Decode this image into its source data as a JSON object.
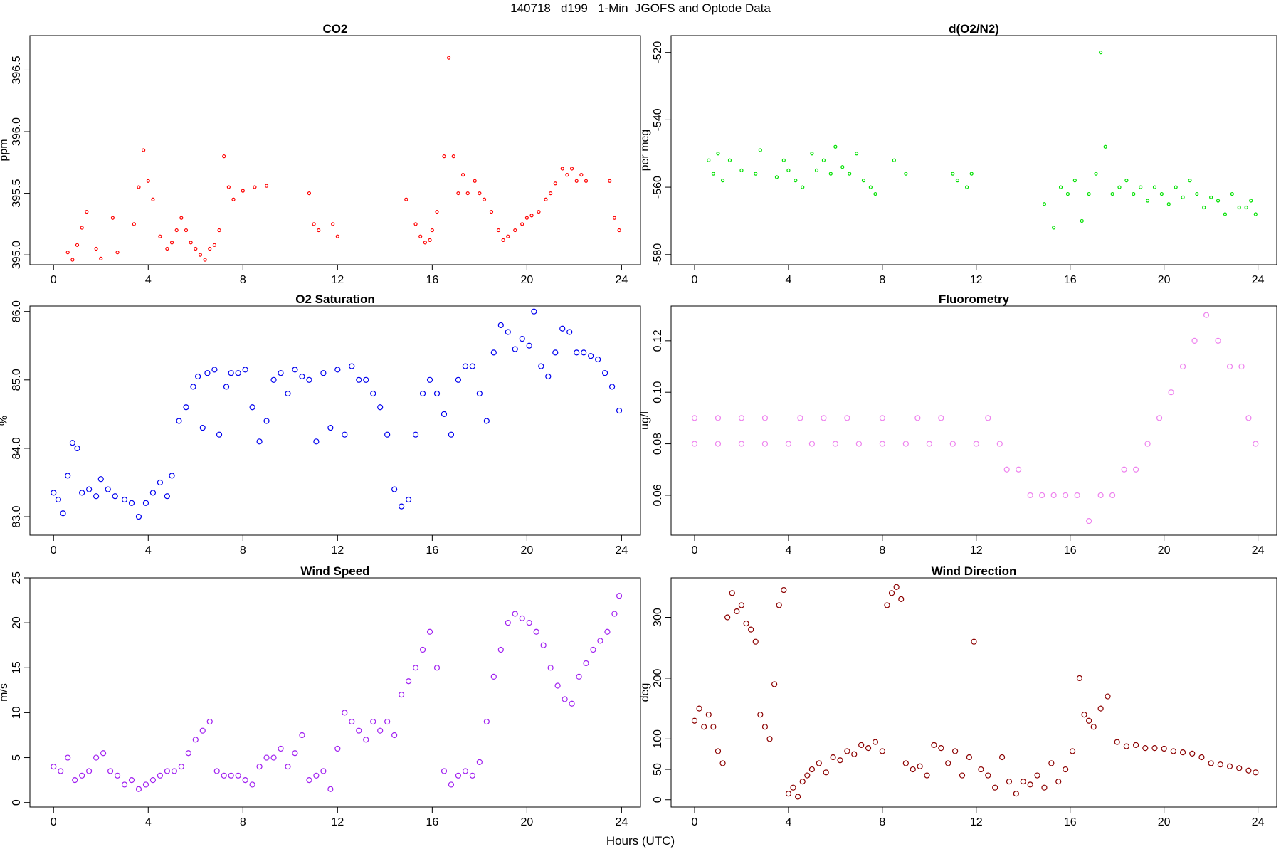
{
  "figure": {
    "title": "140718   d199   1-Min  JGOFS and Optode Data",
    "xlabel": "Hours (UTC)"
  },
  "chart_data": [
    {
      "id": "co2",
      "type": "scatter",
      "title": "CO2",
      "ylabel": "ppm",
      "color": "#ff0000",
      "xlim": [
        -1,
        24.8
      ],
      "ylim": [
        394.92,
        396.78
      ],
      "xticks": [
        0,
        4,
        8,
        12,
        16,
        20,
        24
      ],
      "yticks": [
        395.0,
        395.5,
        396.0,
        396.5
      ],
      "ytick_labels": [
        "395.0",
        "395.5",
        "396.0",
        "396.5"
      ],
      "x": [
        0.6,
        0.8,
        1.0,
        1.2,
        1.4,
        1.8,
        2.0,
        2.5,
        2.7,
        3.4,
        3.6,
        3.8,
        4.0,
        4.2,
        4.5,
        4.8,
        5.0,
        5.2,
        5.4,
        5.6,
        5.8,
        6.0,
        6.2,
        6.4,
        6.6,
        6.8,
        7.0,
        7.2,
        7.4,
        7.6,
        8.0,
        8.5,
        9.0,
        10.8,
        11.0,
        11.2,
        11.8,
        12.0,
        14.9,
        15.3,
        15.5,
        15.7,
        15.9,
        16.0,
        16.2,
        16.5,
        16.7,
        16.9,
        17.1,
        17.3,
        17.5,
        17.8,
        18.0,
        18.2,
        18.5,
        18.8,
        19.0,
        19.2,
        19.5,
        19.8,
        20.0,
        20.2,
        20.5,
        20.8,
        21.0,
        21.2,
        21.5,
        21.7,
        21.9,
        22.1,
        22.3,
        22.5,
        23.5,
        23.7,
        23.9
      ],
      "y": [
        395.02,
        394.96,
        395.08,
        395.22,
        395.35,
        395.05,
        394.97,
        395.3,
        395.02,
        395.25,
        395.55,
        395.85,
        395.6,
        395.45,
        395.15,
        395.05,
        395.1,
        395.2,
        395.3,
        395.2,
        395.1,
        395.05,
        395.0,
        394.96,
        395.05,
        395.08,
        395.2,
        395.8,
        395.55,
        395.45,
        395.52,
        395.55,
        395.56,
        395.5,
        395.25,
        395.2,
        395.25,
        395.15,
        395.45,
        395.25,
        395.15,
        395.1,
        395.12,
        395.2,
        395.35,
        395.8,
        396.6,
        395.8,
        395.5,
        395.65,
        395.5,
        395.6,
        395.5,
        395.45,
        395.35,
        395.2,
        395.12,
        395.15,
        395.2,
        395.25,
        395.3,
        395.32,
        395.35,
        395.45,
        395.5,
        395.58,
        395.7,
        395.65,
        395.7,
        395.6,
        395.65,
        395.6,
        395.6,
        395.3,
        395.2
      ]
    },
    {
      "id": "do2n2",
      "type": "scatter",
      "title": "d(O2/N2)",
      "ylabel": "per meg",
      "color": "#00e000",
      "xlim": [
        -1,
        24.8
      ],
      "ylim": [
        -583,
        -515
      ],
      "xticks": [
        0,
        4,
        8,
        12,
        16,
        20,
        24
      ],
      "yticks": [
        -520,
        -540,
        -560,
        -580
      ],
      "ytick_labels": [
        "-520",
        "-540",
        "-560",
        "-580"
      ],
      "x": [
        0.6,
        0.8,
        1.0,
        1.2,
        1.5,
        2.0,
        2.6,
        2.8,
        3.5,
        3.8,
        4.0,
        4.3,
        4.6,
        5.0,
        5.2,
        5.5,
        5.8,
        6.0,
        6.3,
        6.6,
        6.9,
        7.2,
        7.5,
        7.7,
        8.5,
        9.0,
        11.0,
        11.2,
        11.6,
        11.8,
        14.9,
        15.3,
        15.6,
        15.9,
        16.2,
        16.5,
        16.8,
        17.1,
        17.3,
        17.5,
        17.8,
        18.1,
        18.4,
        18.7,
        19.0,
        19.3,
        19.6,
        19.9,
        20.2,
        20.5,
        20.8,
        21.1,
        21.4,
        21.7,
        22.0,
        22.3,
        22.6,
        22.9,
        23.2,
        23.5,
        23.7,
        23.9
      ],
      "y": [
        -552,
        -556,
        -550,
        -558,
        -552,
        -555,
        -556,
        -549,
        -557,
        -552,
        -555,
        -558,
        -560,
        -550,
        -555,
        -552,
        -556,
        -548,
        -554,
        -556,
        -550,
        -558,
        -560,
        -562,
        -552,
        -556,
        -556,
        -558,
        -560,
        -556,
        -565,
        -572,
        -560,
        -562,
        -558,
        -570,
        -562,
        -556,
        -520,
        -548,
        -562,
        -560,
        -558,
        -562,
        -560,
        -564,
        -560,
        -562,
        -565,
        -560,
        -563,
        -558,
        -562,
        -566,
        -563,
        -564,
        -568,
        -562,
        -566,
        -566,
        -564,
        -568
      ]
    },
    {
      "id": "o2sat",
      "type": "scatter",
      "title": "O2 Saturation",
      "ylabel": "%",
      "color": "#0000ee",
      "xlim": [
        -1,
        24.8
      ],
      "ylim": [
        82.73,
        86.08
      ],
      "xticks": [
        0,
        4,
        8,
        12,
        16,
        20,
        24
      ],
      "yticks": [
        83.0,
        84.0,
        85.0,
        86.0
      ],
      "ytick_labels": [
        "83.0",
        "84.0",
        "85.0",
        "86.0"
      ],
      "x": [
        0.0,
        0.2,
        0.4,
        0.6,
        0.8,
        1.0,
        1.2,
        1.5,
        1.8,
        2.0,
        2.3,
        2.6,
        3.0,
        3.3,
        3.6,
        3.9,
        4.2,
        4.5,
        4.8,
        5.0,
        5.3,
        5.6,
        5.9,
        6.1,
        6.3,
        6.5,
        6.8,
        7.0,
        7.3,
        7.5,
        7.8,
        8.1,
        8.4,
        8.7,
        9.0,
        9.3,
        9.6,
        9.9,
        10.2,
        10.5,
        10.8,
        11.1,
        11.4,
        11.7,
        12.0,
        12.3,
        12.6,
        12.9,
        13.2,
        13.5,
        13.8,
        14.1,
        14.4,
        14.7,
        15.0,
        15.3,
        15.6,
        15.9,
        16.2,
        16.5,
        16.8,
        17.1,
        17.4,
        17.7,
        18.0,
        18.3,
        18.6,
        18.9,
        19.2,
        19.5,
        19.8,
        20.1,
        20.3,
        20.6,
        20.9,
        21.2,
        21.5,
        21.8,
        22.1,
        22.4,
        22.7,
        23.0,
        23.3,
        23.6,
        23.9
      ],
      "y": [
        83.35,
        83.25,
        83.05,
        83.6,
        84.08,
        84.0,
        83.35,
        83.4,
        83.3,
        83.55,
        83.4,
        83.3,
        83.25,
        83.2,
        83.0,
        83.2,
        83.35,
        83.5,
        83.3,
        83.6,
        84.4,
        84.6,
        84.9,
        85.05,
        84.3,
        85.1,
        85.15,
        84.2,
        84.9,
        85.1,
        85.1,
        85.15,
        84.6,
        84.1,
        84.4,
        85.0,
        85.1,
        84.8,
        85.15,
        85.05,
        85.0,
        84.1,
        85.1,
        84.3,
        85.15,
        84.2,
        85.2,
        85.0,
        85.0,
        84.8,
        84.6,
        84.2,
        83.4,
        83.15,
        83.25,
        84.2,
        84.8,
        85.0,
        84.8,
        84.5,
        84.2,
        85.0,
        85.2,
        85.2,
        84.8,
        84.4,
        85.4,
        85.8,
        85.7,
        85.45,
        85.6,
        85.5,
        86.0,
        85.2,
        85.05,
        85.4,
        85.75,
        85.7,
        85.4,
        85.4,
        85.35,
        85.3,
        85.1,
        84.9,
        84.55
      ]
    },
    {
      "id": "fluor",
      "type": "scatter",
      "title": "Fluorometry",
      "ylabel": "ug/l",
      "color": "#ee82ee",
      "xlim": [
        -1,
        24.8
      ],
      "ylim": [
        0.0445,
        0.1335
      ],
      "xticks": [
        0,
        4,
        8,
        12,
        16,
        20,
        24
      ],
      "yticks": [
        0.06,
        0.08,
        0.1,
        0.12
      ],
      "ytick_labels": [
        "0.06",
        "0.08",
        "0.10",
        "0.12"
      ],
      "x": [
        0.0,
        1.0,
        2.0,
        3.0,
        4.0,
        5.0,
        6.0,
        7.0,
        8.0,
        9.0,
        10.0,
        11.0,
        12.0,
        13.0,
        0.0,
        1.0,
        2.0,
        3.0,
        4.5,
        5.5,
        6.5,
        8.0,
        9.5,
        10.5,
        12.5,
        13.3,
        13.8,
        14.3,
        14.8,
        15.3,
        15.8,
        16.3,
        16.8,
        17.3,
        17.8,
        18.3,
        18.8,
        19.3,
        19.8,
        20.3,
        20.8,
        21.3,
        21.8,
        22.3,
        22.8,
        23.3,
        23.6,
        23.9
      ],
      "y": [
        0.08,
        0.08,
        0.08,
        0.08,
        0.08,
        0.08,
        0.08,
        0.08,
        0.08,
        0.08,
        0.08,
        0.08,
        0.08,
        0.08,
        0.09,
        0.09,
        0.09,
        0.09,
        0.09,
        0.09,
        0.09,
        0.09,
        0.09,
        0.09,
        0.09,
        0.07,
        0.07,
        0.06,
        0.06,
        0.06,
        0.06,
        0.06,
        0.05,
        0.06,
        0.06,
        0.07,
        0.07,
        0.08,
        0.09,
        0.1,
        0.11,
        0.12,
        0.13,
        0.12,
        0.11,
        0.11,
        0.09,
        0.08
      ]
    },
    {
      "id": "wspd",
      "type": "scatter",
      "title": "Wind Speed",
      "ylabel": "m/s",
      "color": "#a020f0",
      "xlim": [
        -1,
        24.8
      ],
      "ylim": [
        -0.5,
        25.0
      ],
      "xticks": [
        0,
        4,
        8,
        12,
        16,
        20,
        24
      ],
      "yticks": [
        0,
        5,
        10,
        15,
        20,
        25
      ],
      "ytick_labels": [
        "0",
        "5",
        "10",
        "15",
        "20",
        "25"
      ],
      "x": [
        0.0,
        0.3,
        0.6,
        0.9,
        1.2,
        1.5,
        1.8,
        2.1,
        2.4,
        2.7,
        3.0,
        3.3,
        3.6,
        3.9,
        4.2,
        4.5,
        4.8,
        5.1,
        5.4,
        5.7,
        6.0,
        6.3,
        6.6,
        6.9,
        7.2,
        7.5,
        7.8,
        8.1,
        8.4,
        8.7,
        9.0,
        9.3,
        9.6,
        9.9,
        10.2,
        10.5,
        10.8,
        11.1,
        11.4,
        11.7,
        12.0,
        12.3,
        12.6,
        12.9,
        13.2,
        13.5,
        13.8,
        14.1,
        14.4,
        14.7,
        15.0,
        15.3,
        15.6,
        15.9,
        16.2,
        16.5,
        16.8,
        17.1,
        17.4,
        17.7,
        18.0,
        18.3,
        18.6,
        18.9,
        19.2,
        19.5,
        19.8,
        20.1,
        20.4,
        20.7,
        21.0,
        21.3,
        21.6,
        21.9,
        22.2,
        22.5,
        22.8,
        23.1,
        23.4,
        23.7,
        23.9
      ],
      "y": [
        4.0,
        3.5,
        5.0,
        2.5,
        3.0,
        3.5,
        5.0,
        5.5,
        3.5,
        3.0,
        2.0,
        2.5,
        1.5,
        2.0,
        2.5,
        3.0,
        3.5,
        3.5,
        4.0,
        5.5,
        7.0,
        8.0,
        9.0,
        3.5,
        3.0,
        3.0,
        3.0,
        2.5,
        2.0,
        4.0,
        5.0,
        5.0,
        6.0,
        4.0,
        5.5,
        7.5,
        2.5,
        3.0,
        3.5,
        1.5,
        6.0,
        10.0,
        9.0,
        8.0,
        7.0,
        9.0,
        8.0,
        9.0,
        7.5,
        12.0,
        13.5,
        15.0,
        17.0,
        19.0,
        15.0,
        3.5,
        2.0,
        3.0,
        3.5,
        3.0,
        4.5,
        9.0,
        14.0,
        17.0,
        20.0,
        21.0,
        20.5,
        20.0,
        19.0,
        17.5,
        15.0,
        13.0,
        11.5,
        11.0,
        14.0,
        15.5,
        17.0,
        18.0,
        19.0,
        21.0,
        23.0
      ]
    },
    {
      "id": "wdir",
      "type": "scatter",
      "title": "Wind Direction",
      "ylabel": "deg",
      "color": "#8b0000",
      "xlim": [
        -1,
        24.8
      ],
      "ylim": [
        -12,
        365
      ],
      "xticks": [
        0,
        4,
        8,
        12,
        16,
        20,
        24
      ],
      "yticks": [
        0,
        50,
        100,
        200,
        300
      ],
      "ytick_labels": [
        "0",
        "50",
        "100",
        "200",
        "300"
      ],
      "x": [
        0.0,
        0.2,
        0.4,
        0.6,
        0.8,
        1.0,
        1.2,
        1.4,
        1.6,
        1.8,
        2.0,
        2.2,
        2.4,
        2.6,
        2.8,
        3.0,
        3.2,
        3.4,
        3.6,
        3.8,
        4.0,
        4.2,
        4.4,
        4.6,
        4.8,
        5.0,
        5.3,
        5.6,
        5.9,
        6.2,
        6.5,
        6.8,
        7.1,
        7.4,
        7.7,
        8.0,
        8.2,
        8.4,
        8.6,
        8.8,
        9.0,
        9.3,
        9.6,
        9.9,
        10.2,
        10.5,
        10.8,
        11.1,
        11.4,
        11.7,
        11.9,
        12.2,
        12.5,
        12.8,
        13.1,
        13.4,
        13.7,
        14.0,
        14.3,
        14.6,
        14.9,
        15.2,
        15.5,
        15.8,
        16.1,
        16.4,
        16.6,
        16.8,
        17.0,
        17.3,
        17.6,
        18.0,
        18.4,
        18.8,
        19.2,
        19.6,
        20.0,
        20.4,
        20.8,
        21.2,
        21.6,
        22.0,
        22.4,
        22.8,
        23.2,
        23.6,
        23.9
      ],
      "y": [
        130,
        150,
        120,
        140,
        120,
        80,
        60,
        300,
        340,
        310,
        320,
        290,
        280,
        260,
        140,
        120,
        100,
        190,
        320,
        345,
        10,
        20,
        5,
        30,
        40,
        50,
        60,
        45,
        70,
        65,
        80,
        75,
        90,
        85,
        95,
        80,
        320,
        340,
        350,
        330,
        60,
        50,
        55,
        40,
        90,
        85,
        60,
        80,
        40,
        70,
        260,
        50,
        40,
        20,
        70,
        30,
        10,
        30,
        25,
        40,
        20,
        60,
        30,
        50,
        80,
        200,
        140,
        130,
        120,
        150,
        170,
        95,
        88,
        90,
        85,
        85,
        84,
        80,
        78,
        76,
        70,
        60,
        58,
        55,
        52,
        48,
        45
      ]
    }
  ]
}
